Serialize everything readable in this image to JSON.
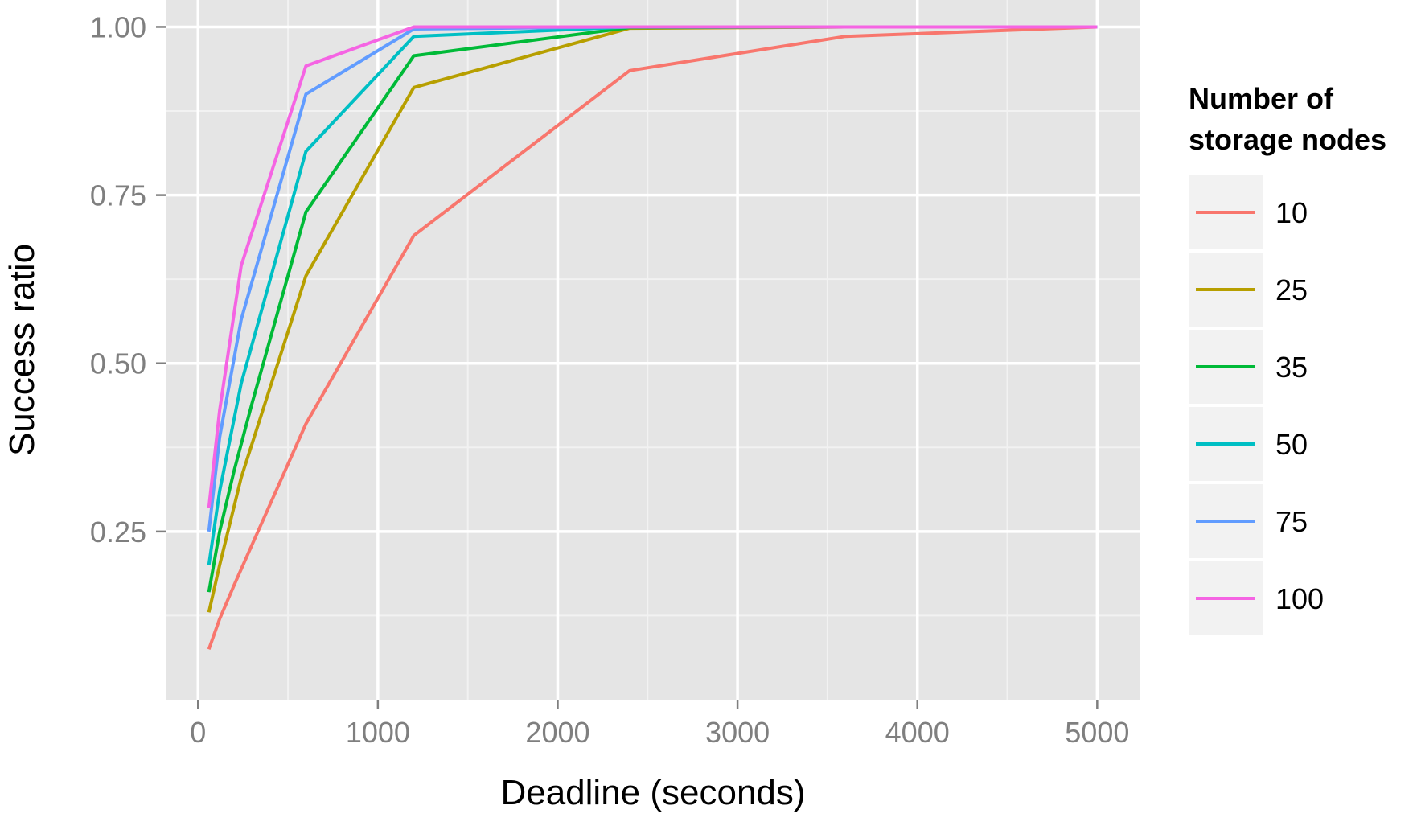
{
  "chart_data": {
    "type": "line",
    "title": "",
    "xlabel": "Deadline (seconds)",
    "ylabel": "Success ratio",
    "xlim": [
      -180,
      5240
    ],
    "ylim": [
      0.0,
      1.04
    ],
    "x_ticks": [
      0,
      1000,
      2000,
      3000,
      4000,
      5000
    ],
    "x_tick_labels": [
      "0",
      "1000",
      "2000",
      "3000",
      "4000",
      "5000"
    ],
    "y_ticks": [
      0.25,
      0.5,
      0.75,
      1.0
    ],
    "y_tick_labels": [
      "0.25",
      "0.50",
      "0.75",
      "1.00"
    ],
    "grid": true,
    "legend_title": [
      "Number of",
      "storage nodes"
    ],
    "legend_position": "right",
    "series": [
      {
        "name": "10",
        "color": "#F8766D",
        "x": [
          60,
          120,
          200,
          300,
          600,
          1200,
          2400,
          3600,
          5000
        ],
        "y": [
          0.075,
          0.12,
          0.17,
          0.23,
          0.41,
          0.69,
          0.935,
          0.986,
          1.0
        ]
      },
      {
        "name": "25",
        "color": "#B79F00",
        "x": [
          60,
          120,
          240,
          600,
          1200,
          2400,
          3600,
          5000
        ],
        "y": [
          0.13,
          0.2,
          0.33,
          0.63,
          0.91,
          0.998,
          1.0,
          1.0
        ]
      },
      {
        "name": "35",
        "color": "#00BA38",
        "x": [
          60,
          120,
          200,
          300,
          600,
          1200,
          2400,
          3600,
          5000
        ],
        "y": [
          0.16,
          0.25,
          0.34,
          0.44,
          0.725,
          0.957,
          0.999,
          1.0,
          1.0
        ]
      },
      {
        "name": "50",
        "color": "#00BFC4",
        "x": [
          60,
          120,
          240,
          600,
          1200,
          2400,
          3600,
          5000
        ],
        "y": [
          0.2,
          0.31,
          0.47,
          0.815,
          0.986,
          1.0,
          1.0,
          1.0
        ]
      },
      {
        "name": "75",
        "color": "#619CFF",
        "x": [
          60,
          120,
          240,
          600,
          1200,
          2400,
          3600,
          5000
        ],
        "y": [
          0.25,
          0.39,
          0.565,
          0.9,
          0.997,
          1.0,
          1.0,
          1.0
        ]
      },
      {
        "name": "100",
        "color": "#F564E3",
        "x": [
          60,
          120,
          240,
          600,
          1200,
          2400,
          3600,
          5000
        ],
        "y": [
          0.285,
          0.43,
          0.645,
          0.942,
          1.0,
          1.0,
          1.0,
          1.0
        ]
      }
    ]
  },
  "style": {
    "panel_bg": "#E5E5E5",
    "grid_major": "#FFFFFF",
    "grid_minor": "#F2F2F2",
    "legend_key_bg": "#F2F2F2",
    "tick_color": "#7F7F7F"
  }
}
